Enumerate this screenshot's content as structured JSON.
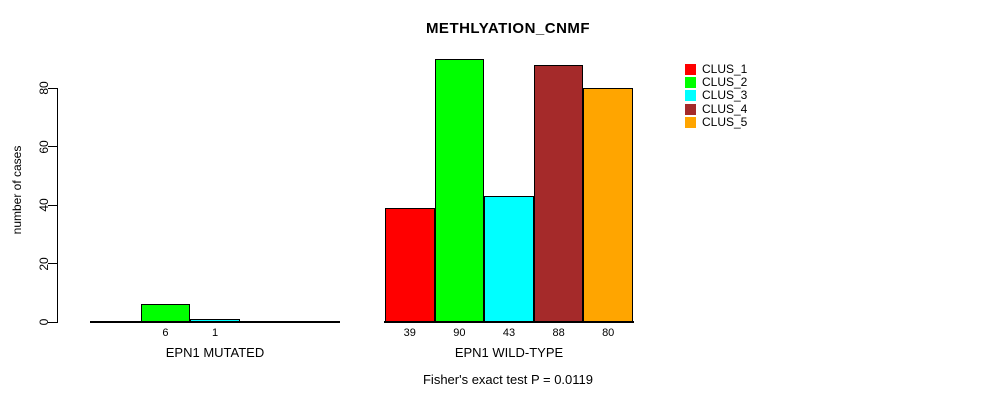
{
  "title": "METHLYATION_CNMF",
  "footer": "Fisher's exact test P = 0.0119",
  "chart_data": {
    "type": "bar",
    "title": "METHLYATION_CNMF",
    "ylabel": "number of cases",
    "xlabel": "",
    "ylim": [
      0,
      90
    ],
    "yticks": [
      0,
      20,
      40,
      60,
      80
    ],
    "grid": false,
    "legend_position": "right",
    "legend": [
      "CLUS_1",
      "CLUS_2",
      "CLUS_3",
      "CLUS_4",
      "CLUS_5"
    ],
    "colors": [
      "#FF0000",
      "#00FF00",
      "#00FFFF",
      "#A52A2A",
      "#FFA500"
    ],
    "groups": [
      {
        "label": "EPN1 MUTATED",
        "values": [
          0,
          6,
          1,
          0,
          0
        ]
      },
      {
        "label": "EPN1 WILD-TYPE",
        "values": [
          39,
          90,
          43,
          88,
          80
        ]
      }
    ],
    "annotation": "Fisher's exact test P = 0.0119"
  }
}
